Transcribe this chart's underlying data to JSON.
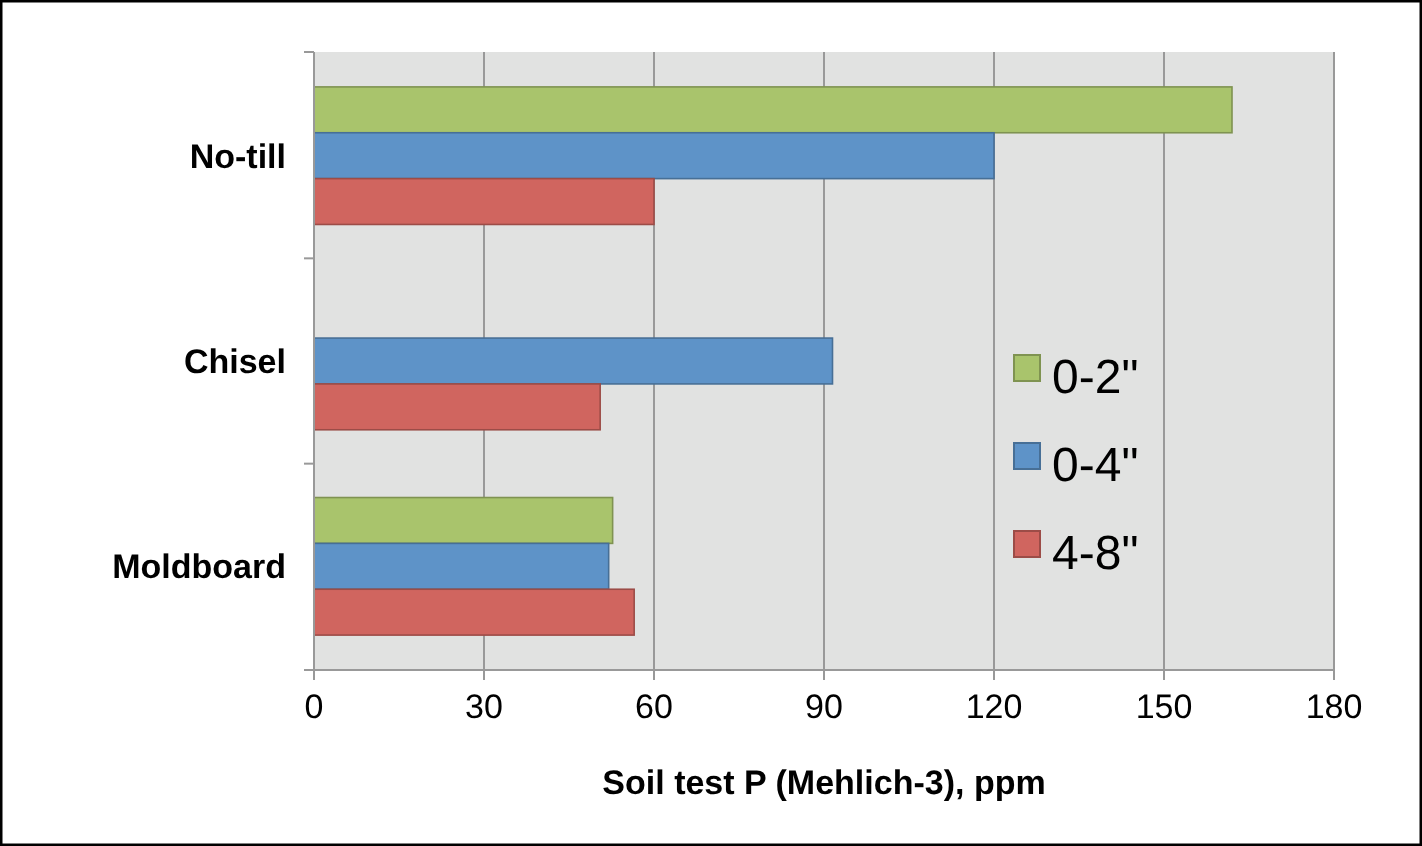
{
  "chart_data": {
    "type": "bar",
    "orientation": "horizontal",
    "xlabel": "Soil test P (Mehlich-3), ppm",
    "categories": [
      "No-till",
      "Chisel",
      "Moldboard"
    ],
    "series": [
      {
        "name": "0-2\"",
        "color": "#a9c46c",
        "values": [
          162,
          null,
          52.7
        ]
      },
      {
        "name": "0-4\"",
        "color": "#5e93c8",
        "values": [
          120,
          91.5,
          52
        ]
      },
      {
        "name": "4-8\"",
        "color": "#d0655f",
        "values": [
          60,
          50.5,
          56.5
        ]
      }
    ],
    "xlim": [
      0,
      180
    ],
    "xticks": [
      0,
      30,
      60,
      90,
      120,
      150,
      180
    ],
    "grid": "x",
    "legend": "right"
  }
}
